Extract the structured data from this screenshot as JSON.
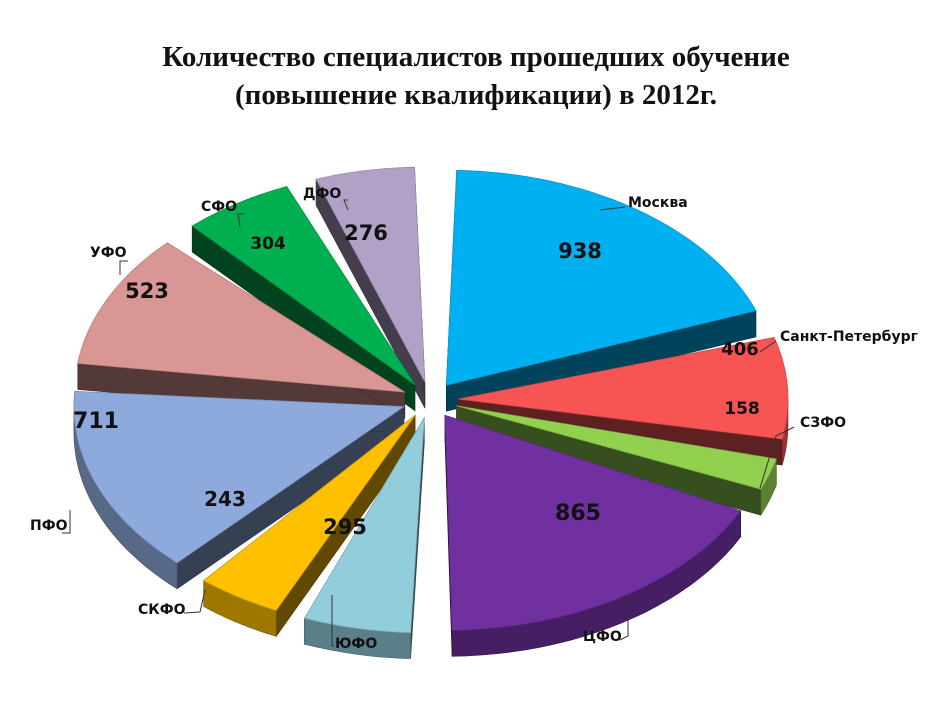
{
  "chart_data": {
    "type": "pie",
    "title_lines": [
      "Количество специалистов прошедших обучение",
      "(повышение квалификации) в 2012г."
    ],
    "categories": [
      "Москва",
      "Санкт-Петербург",
      "СЗФО",
      "ЦФО",
      "ЮФО",
      "СКФО",
      "ПФО",
      "УФО",
      "СФО",
      "ДФО"
    ],
    "values": [
      938,
      406,
      158,
      865,
      295,
      243,
      711,
      523,
      304,
      276
    ],
    "colors": [
      "#00B0F0",
      "#F75454",
      "#92D050",
      "#7030A0",
      "#92CDDC",
      "#FFC000",
      "#8EA9DB",
      "#DA9694",
      "#00B050",
      "#B2A1C7"
    ],
    "legend": "none",
    "style": "3d-exploded"
  }
}
